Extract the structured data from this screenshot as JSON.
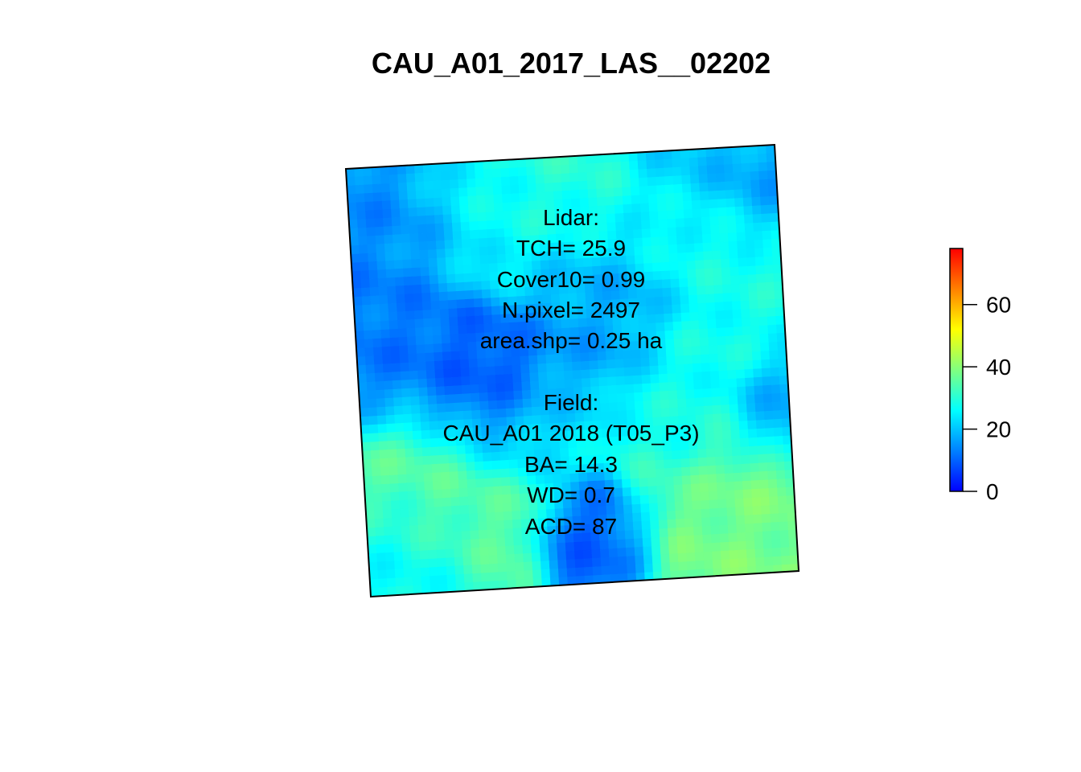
{
  "title": "CAU_A01_2017_LAS__02202",
  "lidar": {
    "header": "Lidar:",
    "tch": "TCH= 25.9",
    "cover10": "Cover10= 0.99",
    "n_pixel": "N.pixel= 2497",
    "area_shp": "area.shp= 0.25 ha"
  },
  "field": {
    "header": "Field:",
    "plot": "CAU_A01 2018 (T05_P3)",
    "ba": "BA= 14.3",
    "wd": "WD= 0.7",
    "acd": "ACD= 87"
  },
  "legend": {
    "ticks": [
      "0",
      "20",
      "40",
      "60"
    ],
    "tick_values": [
      0,
      20,
      40,
      60
    ],
    "range": [
      0,
      78
    ],
    "palette": [
      "#0000ff",
      "#0080ff",
      "#00ffff",
      "#80ff80",
      "#ffff00",
      "#ff8000",
      "#ff0000"
    ]
  }
}
